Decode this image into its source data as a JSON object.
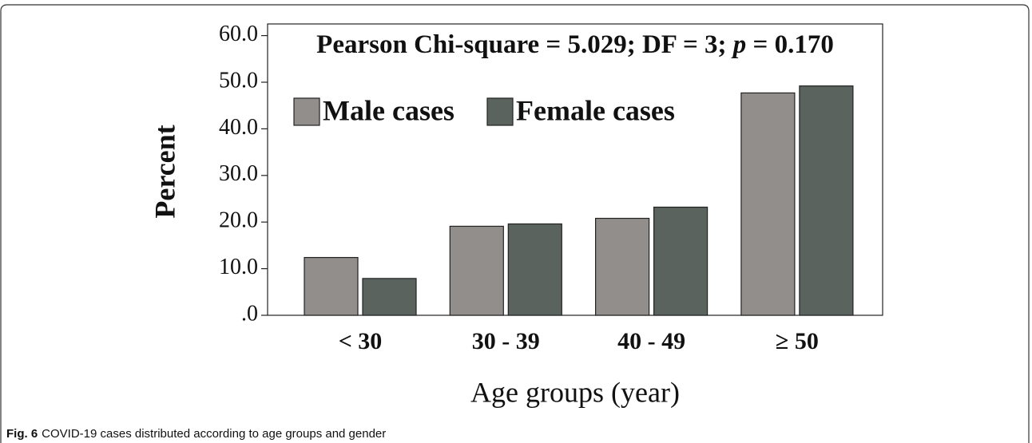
{
  "chart_data": {
    "type": "bar",
    "annotation": "Pearson Chi-square = 5.029; DF = 3; p = 0.170",
    "xlabel": "Age groups (year)",
    "ylabel": "Percent",
    "categories": [
      "< 30",
      "30 - 39",
      "40 - 49",
      "≥ 50"
    ],
    "series": [
      {
        "name": "Male cases",
        "color": "#928e8b",
        "values": [
          12.4,
          19.1,
          20.8,
          47.7
        ]
      },
      {
        "name": "Female cases",
        "color": "#5a635e",
        "values": [
          7.9,
          19.6,
          23.2,
          49.2
        ]
      }
    ],
    "ylim": [
      0,
      62.5
    ],
    "yticks": [
      {
        "value": 0,
        "label": ".0"
      },
      {
        "value": 10,
        "label": "10.0"
      },
      {
        "value": 20,
        "label": "20.0"
      },
      {
        "value": 30,
        "label": "30.0"
      },
      {
        "value": 40,
        "label": "40.0"
      },
      {
        "value": 50,
        "label": "50.0"
      },
      {
        "value": 60,
        "label": "60.0"
      }
    ],
    "legend": "upper left",
    "caption": {
      "label": "Fig. 6",
      "text": "COVID-19 cases distributed according to age groups and gender"
    }
  }
}
